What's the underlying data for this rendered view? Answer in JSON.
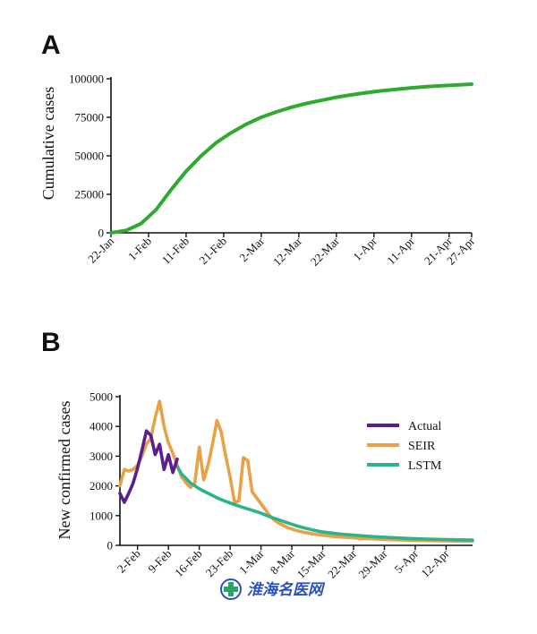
{
  "chart_data": [
    {
      "panel": "A",
      "type": "line",
      "ylabel": "Cumulative cases",
      "xlabel": "",
      "ylim": [
        0,
        100000
      ],
      "y_ticks": [
        "0",
        "25000",
        "50000",
        "75000",
        "100000"
      ],
      "y_tick_values": [
        0,
        25000,
        50000,
        75000,
        100000
      ],
      "x_ticks": [
        "22-Jan",
        "1-Feb",
        "11-Feb",
        "21-Feb",
        "2-Mar",
        "12-Mar",
        "22-Mar",
        "1-Apr",
        "11-Apr",
        "21-Apr",
        "27-Apr"
      ],
      "x_tick_days": [
        0,
        10,
        20,
        30,
        40,
        50,
        60,
        70,
        80,
        90,
        96
      ],
      "x_domain_days": [
        0,
        96
      ],
      "grid": false,
      "series": [
        {
          "color": "#2eaa2e",
          "x": [
            0,
            4,
            8,
            12,
            16,
            20,
            24,
            28,
            32,
            36,
            40,
            44,
            48,
            52,
            56,
            60,
            64,
            68,
            72,
            76,
            80,
            84,
            88,
            92,
            96
          ],
          "y": [
            0,
            1500,
            6000,
            15000,
            28000,
            40000,
            50000,
            58500,
            65000,
            70500,
            75000,
            78500,
            81500,
            84000,
            86000,
            88000,
            89600,
            91000,
            92200,
            93200,
            94100,
            94900,
            95500,
            96000,
            96500
          ]
        }
      ]
    },
    {
      "panel": "B",
      "type": "line",
      "ylabel": "New confirmed cases",
      "xlabel": "",
      "ylim": [
        0,
        5000
      ],
      "y_ticks": [
        "0",
        "1000",
        "2000",
        "3000",
        "4000",
        "5000"
      ],
      "y_tick_values": [
        0,
        1000,
        2000,
        3000,
        4000,
        5000
      ],
      "x_ticks": [
        "2-Feb",
        "9-Feb",
        "16-Feb",
        "23-Feb",
        "1-Mar",
        "8-Mar",
        "15-Mar",
        "22-Mar",
        "29-Mar",
        "5-Apr",
        "12-Apr"
      ],
      "x_tick_days": [
        2,
        9,
        16,
        23,
        30,
        37,
        44,
        51,
        58,
        65,
        72
      ],
      "x_domain_days": [
        -2,
        78
      ],
      "grid": false,
      "legend_position": "right",
      "series": [
        {
          "name": "Actual",
          "color": "#5b1f8c",
          "x": [
            -2,
            -1,
            0,
            1,
            2,
            3,
            4,
            5,
            6,
            7,
            8,
            9,
            10,
            11
          ],
          "y": [
            1750,
            1450,
            1750,
            2100,
            2600,
            3200,
            3850,
            3700,
            3050,
            3400,
            2550,
            3050,
            2450,
            2900
          ]
        },
        {
          "name": "SEIR",
          "color": "#e9a147",
          "x": [
            -2,
            -1,
            0,
            1,
            2,
            3,
            4,
            5,
            6,
            7,
            8,
            9,
            10,
            11,
            12,
            13,
            14,
            15,
            16,
            17,
            18,
            19,
            20,
            21,
            22,
            23,
            24,
            25,
            26,
            27,
            28,
            29,
            30,
            31,
            32,
            33,
            34,
            36,
            38,
            40,
            42,
            44,
            48,
            52,
            56,
            60,
            64,
            68,
            72,
            76,
            78
          ],
          "y": [
            2000,
            2550,
            2500,
            2550,
            2700,
            3000,
            3400,
            3600,
            4300,
            4850,
            4000,
            3450,
            3100,
            2700,
            2300,
            2100,
            1950,
            2100,
            3300,
            2200,
            2700,
            3400,
            4200,
            3800,
            3000,
            2300,
            1450,
            1500,
            2950,
            2850,
            1800,
            1600,
            1400,
            1200,
            1000,
            850,
            750,
            600,
            500,
            430,
            380,
            340,
            280,
            240,
            210,
            190,
            170,
            160,
            150,
            140,
            135
          ]
        },
        {
          "name": "LSTM",
          "color": "#2bb38a",
          "x": [
            11,
            12,
            14,
            16,
            18,
            20,
            22,
            24,
            26,
            28,
            30,
            32,
            34,
            36,
            38,
            40,
            42,
            44,
            48,
            52,
            56,
            60,
            64,
            68,
            72,
            76,
            78
          ],
          "y": [
            2650,
            2400,
            2100,
            1900,
            1750,
            1600,
            1480,
            1370,
            1270,
            1180,
            1080,
            960,
            860,
            760,
            660,
            580,
            510,
            450,
            380,
            330,
            290,
            260,
            230,
            210,
            195,
            185,
            180
          ]
        }
      ]
    }
  ],
  "panel_labels": {
    "a": "A",
    "b": "B"
  },
  "watermark": {
    "icon": "medical-cross-icon",
    "text": "淮海名医网"
  }
}
